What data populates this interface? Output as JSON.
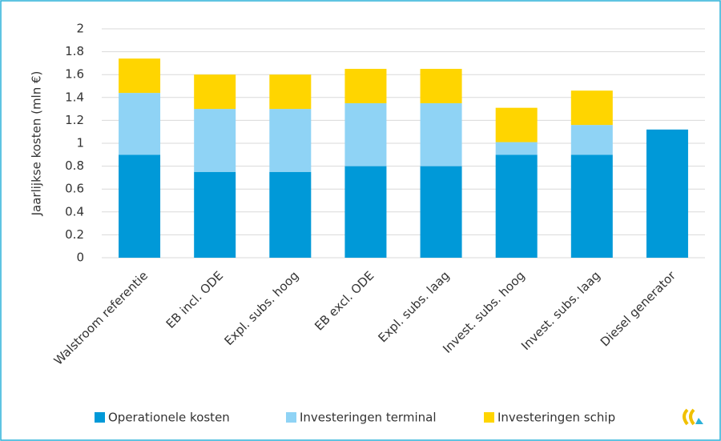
{
  "chart_data": {
    "type": "stacked_bar",
    "ylabel": "Jaarlijkse kosten (mln €)",
    "categories": [
      "Walstroom referentie",
      "EB incl. ODE",
      "Expl. subs. hoog",
      "EB excl. ODE",
      "Expl. subs. laag",
      "Invest. subs. hoog",
      "Invest. subs. laag",
      "Diesel generator"
    ],
    "series": [
      {
        "name": "Operationele kosten",
        "color": "#0099d8",
        "values": [
          0.9,
          0.75,
          0.75,
          0.8,
          0.8,
          0.9,
          0.9,
          1.12
        ]
      },
      {
        "name": "Investeringen terminal",
        "color": "#8fd3f5",
        "values": [
          0.54,
          0.55,
          0.55,
          0.55,
          0.55,
          0.11,
          0.26,
          0
        ]
      },
      {
        "name": "Investeringen schip",
        "color": "#ffd500",
        "values": [
          0.3,
          0.3,
          0.3,
          0.3,
          0.3,
          0.3,
          0.3,
          0
        ]
      }
    ],
    "ylim": [
      0,
      2
    ],
    "yticks": [
      0,
      0.2,
      0.4,
      0.6,
      0.8,
      1,
      1.2,
      1.4,
      1.6,
      1.8,
      2
    ],
    "grid": true,
    "legend": "bottom"
  }
}
